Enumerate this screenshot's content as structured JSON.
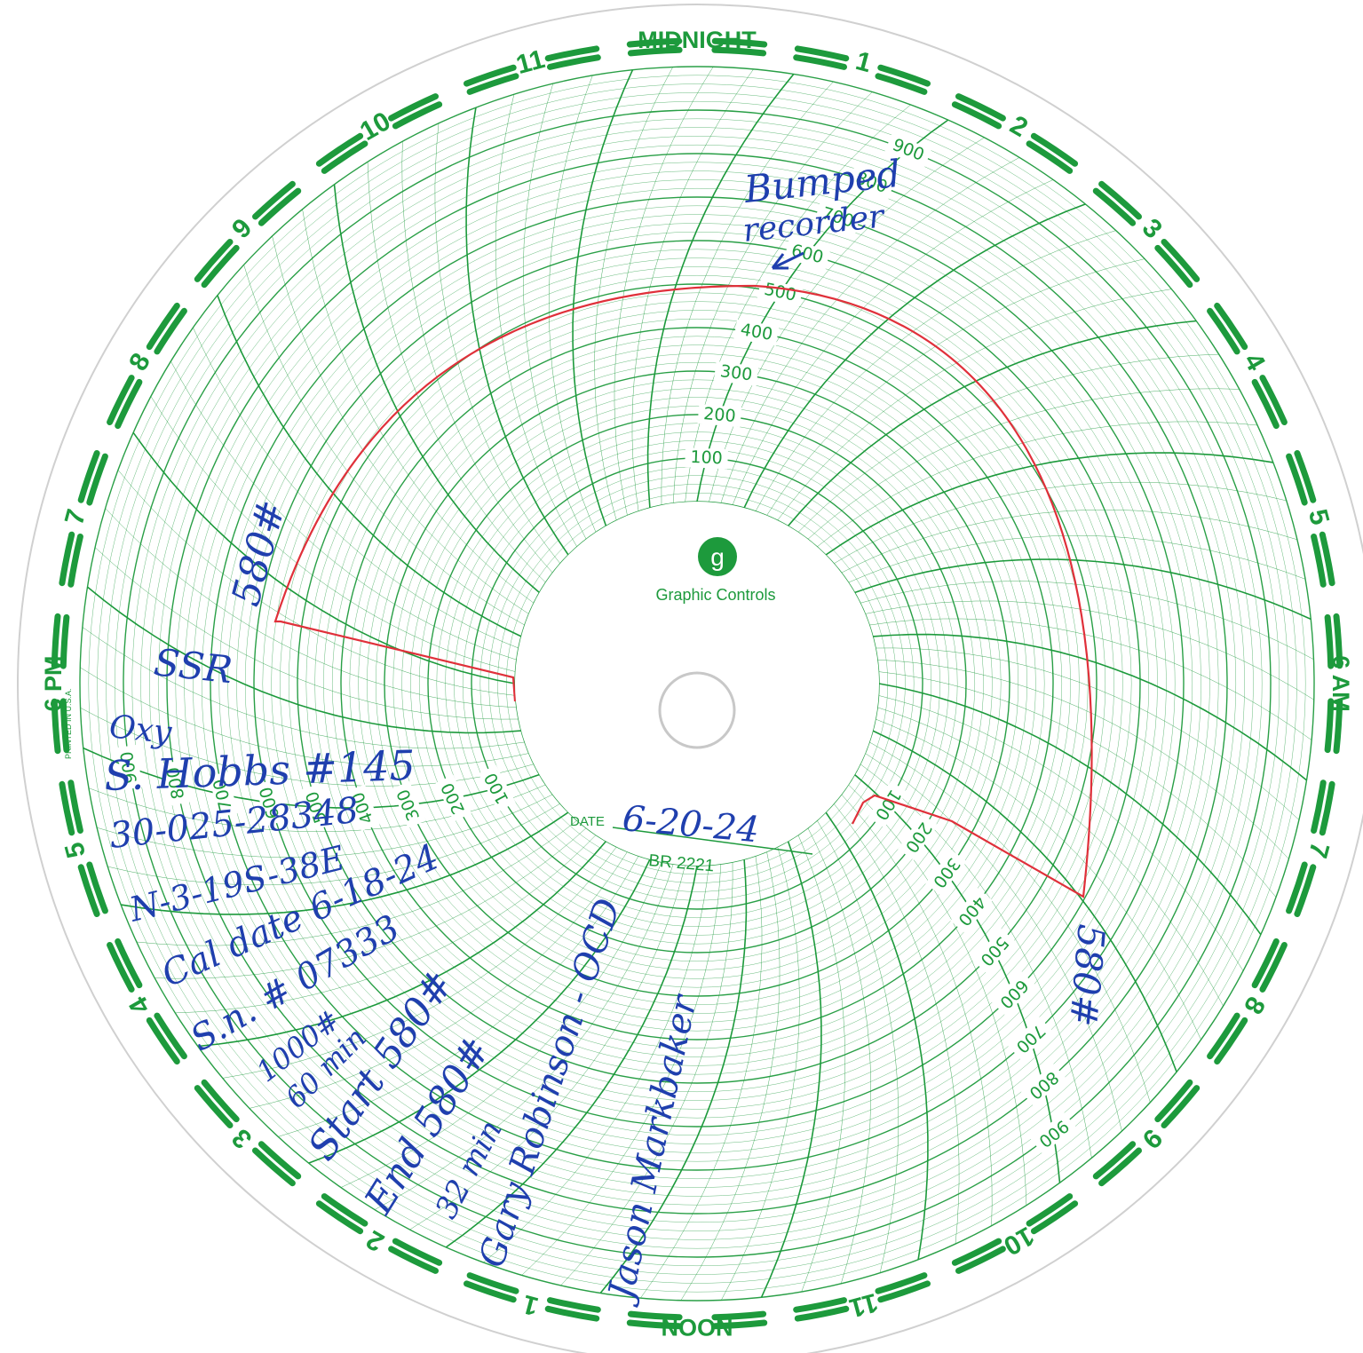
{
  "brand": {
    "name": "Graphic Controls",
    "logo_letter": "g",
    "model": "BR 2221",
    "printed": "PRINTED IN U.S.A."
  },
  "date": {
    "label": "DATE",
    "value": "6-20-24"
  },
  "hour_labels": [
    "MIDNIGHT",
    "1",
    "2",
    "3",
    "4",
    "5",
    "6 AM",
    "7",
    "8",
    "9",
    "10",
    "11",
    "NOON",
    "1",
    "2",
    "3",
    "4",
    "5",
    "6 PM",
    "7",
    "8",
    "9",
    "10",
    "11"
  ],
  "scale_values": [
    "100",
    "200",
    "300",
    "400",
    "500",
    "600",
    "700",
    "800",
    "900"
  ],
  "notes": {
    "bumped": "Bumped",
    "recorder": "recorder",
    "pressure_left": "580#",
    "pressure_right": "580#",
    "well_code": "SSR",
    "operator": "Oxy",
    "well_name": "S. Hobbs #145",
    "api": "30-025-28348",
    "location": "N-3-19S-38E",
    "cal_date": "Cal date 6-18-24",
    "serial": "S.n. # 07333",
    "rating": "1000#",
    "duration": "60 min",
    "start": "Start 580#",
    "end": "End 580#",
    "elapsed": "32 min",
    "witness_1": "Gary Robinson - OCD",
    "witness_2": "Jason Markbaker"
  },
  "colors": {
    "grid": "#1d9a3c",
    "trace": "#e0303a",
    "ink": "#1f3fae"
  }
}
